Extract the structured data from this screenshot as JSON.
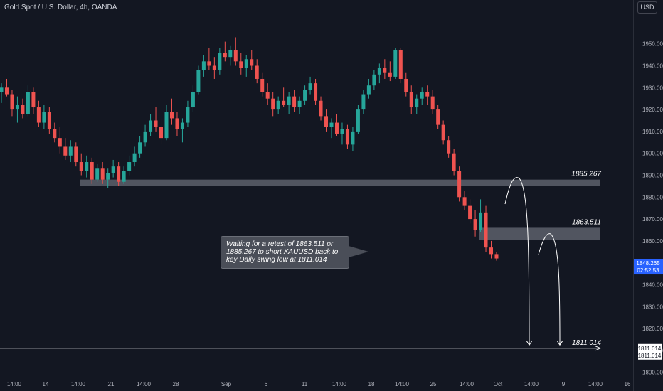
{
  "title": "Gold Spot / U.S. Dollar, 4h, OANDA",
  "currency_button": "USD",
  "annotation_text": "Waiting for a retest of 1863.511 or 1885.267 to short XAUUSD back to key Daily swing low at 1811.014",
  "colors": {
    "background": "#131722",
    "up": "#26a69a",
    "down": "#ef5350",
    "zone": "#5d606b",
    "accent": "#2962ff"
  },
  "chart_data": {
    "type": "candlestick",
    "title": "Gold Spot / U.S. Dollar, 4h, OANDA",
    "xlabel": "",
    "ylabel": "",
    "y_range": [
      1797,
      1966
    ],
    "y_ticks": [
      1800,
      1810,
      1820,
      1830,
      1840,
      1850,
      1860,
      1870,
      1880,
      1890,
      1900,
      1910,
      1920,
      1930,
      1940,
      1950
    ],
    "x_ticks": [
      "14:00",
      "14",
      "14:00",
      "21",
      "14:00",
      "28",
      "Sep",
      "6",
      "11",
      "14:00",
      "18",
      "14:00",
      "25",
      "14:00",
      "Oct",
      "14:00",
      "9",
      "14:00",
      "16"
    ],
    "series": [
      {
        "values": [
          [
            1928,
            1932,
            1923,
            1930
          ],
          [
            1930,
            1934,
            1926,
            1927
          ],
          [
            1927,
            1929,
            1917,
            1920
          ],
          [
            1920,
            1926,
            1914,
            1922
          ],
          [
            1922,
            1925,
            1916,
            1918
          ],
          [
            1918,
            1931,
            1917,
            1928
          ],
          [
            1928,
            1930,
            1918,
            1921
          ],
          [
            1921,
            1924,
            1912,
            1914
          ],
          [
            1914,
            1922,
            1911,
            1919
          ],
          [
            1919,
            1921,
            1909,
            1911
          ],
          [
            1911,
            1914,
            1905,
            1907
          ],
          [
            1907,
            1912,
            1900,
            1903
          ],
          [
            1903,
            1907,
            1897,
            1899
          ],
          [
            1899,
            1906,
            1896,
            1903
          ],
          [
            1903,
            1905,
            1894,
            1896
          ],
          [
            1896,
            1900,
            1890,
            1892
          ],
          [
            1892,
            1899,
            1889,
            1896
          ],
          [
            1896,
            1898,
            1886,
            1888
          ],
          [
            1888,
            1895,
            1887,
            1893
          ],
          [
            1893,
            1896,
            1886,
            1888
          ],
          [
            1888,
            1893,
            1884,
            1891
          ],
          [
            1891,
            1897,
            1889,
            1894
          ],
          [
            1894,
            1896,
            1885,
            1887
          ],
          [
            1887,
            1894,
            1886,
            1892
          ],
          [
            1892,
            1899,
            1890,
            1896
          ],
          [
            1896,
            1903,
            1894,
            1900
          ],
          [
            1900,
            1908,
            1898,
            1905
          ],
          [
            1905,
            1913,
            1903,
            1910
          ],
          [
            1910,
            1918,
            1908,
            1915
          ],
          [
            1915,
            1921,
            1910,
            1912
          ],
          [
            1912,
            1916,
            1904,
            1907
          ],
          [
            1907,
            1922,
            1906,
            1919
          ],
          [
            1919,
            1925,
            1913,
            1916
          ],
          [
            1916,
            1919,
            1908,
            1911
          ],
          [
            1911,
            1916,
            1905,
            1914
          ],
          [
            1914,
            1924,
            1912,
            1921
          ],
          [
            1921,
            1931,
            1919,
            1928
          ],
          [
            1928,
            1940,
            1927,
            1938
          ],
          [
            1938,
            1945,
            1935,
            1942
          ],
          [
            1942,
            1948,
            1938,
            1940
          ],
          [
            1940,
            1944,
            1934,
            1938
          ],
          [
            1938,
            1948,
            1936,
            1946
          ],
          [
            1946,
            1951,
            1942,
            1944
          ],
          [
            1944,
            1949,
            1940,
            1947
          ],
          [
            1947,
            1953,
            1940,
            1942
          ],
          [
            1942,
            1946,
            1936,
            1939
          ],
          [
            1939,
            1945,
            1935,
            1943
          ],
          [
            1943,
            1947,
            1938,
            1940
          ],
          [
            1940,
            1943,
            1932,
            1934
          ],
          [
            1934,
            1937,
            1926,
            1928
          ],
          [
            1928,
            1932,
            1922,
            1925
          ],
          [
            1925,
            1928,
            1917,
            1920
          ],
          [
            1920,
            1926,
            1918,
            1924
          ],
          [
            1924,
            1930,
            1921,
            1922
          ],
          [
            1922,
            1928,
            1918,
            1926
          ],
          [
            1926,
            1929,
            1919,
            1921
          ],
          [
            1921,
            1926,
            1918,
            1924
          ],
          [
            1924,
            1931,
            1922,
            1929
          ],
          [
            1929,
            1935,
            1927,
            1932
          ],
          [
            1932,
            1934,
            1922,
            1924
          ],
          [
            1924,
            1926,
            1915,
            1917
          ],
          [
            1917,
            1920,
            1910,
            1912
          ],
          [
            1912,
            1916,
            1907,
            1914
          ],
          [
            1914,
            1918,
            1908,
            1909
          ],
          [
            1909,
            1914,
            1904,
            1911
          ],
          [
            1911,
            1913,
            1902,
            1904
          ],
          [
            1904,
            1912,
            1901,
            1910
          ],
          [
            1910,
            1922,
            1909,
            1920
          ],
          [
            1920,
            1929,
            1918,
            1927
          ],
          [
            1927,
            1934,
            1925,
            1931
          ],
          [
            1931,
            1938,
            1929,
            1936
          ],
          [
            1936,
            1941,
            1932,
            1939
          ],
          [
            1939,
            1943,
            1934,
            1937
          ],
          [
            1937,
            1942,
            1933,
            1935
          ],
          [
            1935,
            1948,
            1934,
            1947
          ],
          [
            1947,
            1948,
            1932,
            1934
          ],
          [
            1934,
            1937,
            1926,
            1928
          ],
          [
            1928,
            1931,
            1918,
            1921
          ],
          [
            1921,
            1927,
            1918,
            1925
          ],
          [
            1925,
            1930,
            1922,
            1928
          ],
          [
            1928,
            1931,
            1922,
            1926
          ],
          [
            1926,
            1929,
            1918,
            1920
          ],
          [
            1920,
            1922,
            1911,
            1913
          ],
          [
            1913,
            1915,
            1904,
            1906
          ],
          [
            1906,
            1908,
            1898,
            1900
          ],
          [
            1900,
            1902,
            1890,
            1892
          ],
          [
            1892,
            1894,
            1878,
            1880
          ],
          [
            1880,
            1883,
            1874,
            1876
          ],
          [
            1876,
            1879,
            1868,
            1870
          ],
          [
            1870,
            1874,
            1862,
            1865
          ],
          [
            1865,
            1879,
            1864,
            1873
          ],
          [
            1873,
            1876,
            1855,
            1857
          ],
          [
            1857,
            1860,
            1852,
            1854
          ],
          [
            1854,
            1855,
            1851,
            1852
          ]
        ]
      }
    ],
    "levels": [
      {
        "label": "1885.267",
        "value": 1885.267
      },
      {
        "label": "1863.511",
        "value": 1863.511
      },
      {
        "label": "1811.014",
        "value": 1811.014
      }
    ],
    "price_labels": {
      "last_price": "1848.265",
      "countdown": "02:52:53",
      "level_tag_1": "1811.014",
      "level_tag_2": "1811.014"
    }
  }
}
